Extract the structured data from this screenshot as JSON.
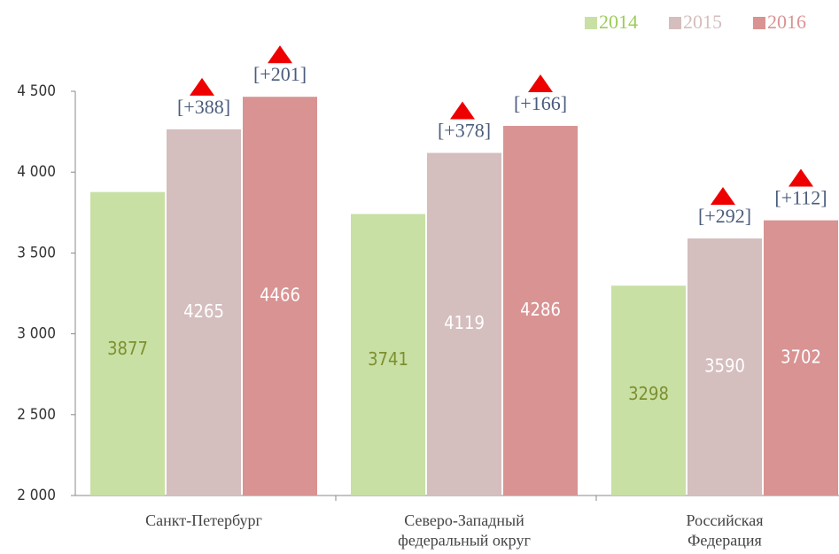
{
  "chart_data": {
    "type": "bar",
    "categories": [
      "Санкт-Петербург",
      "Северо-Западный\nфедеральный округ",
      "Российская\nФедерация"
    ],
    "series": [
      {
        "name": "2014",
        "color": "#c8e0a4",
        "label_color": "#7d8f2e",
        "values": [
          3877,
          3741,
          3298
        ]
      },
      {
        "name": "2015",
        "color": "#d5bebe",
        "label_color": "#ffffff",
        "values": [
          4265,
          4119,
          3590
        ],
        "annotations": [
          "[+388]",
          "[+378]",
          "[+292]"
        ]
      },
      {
        "name": "2016",
        "color": "#d99393",
        "label_color": "#ffffff",
        "values": [
          4466,
          4286,
          3702
        ],
        "annotations": [
          "[+201]",
          "[+166]",
          "[+112]"
        ]
      }
    ],
    "ylim": [
      2000,
      4500
    ],
    "yticks": [
      {
        "value": 2000,
        "label": "2 000"
      },
      {
        "value": 2500,
        "label": "2 500"
      },
      {
        "value": 3000,
        "label": "3 000"
      },
      {
        "value": 3500,
        "label": "3 500"
      },
      {
        "value": 4000,
        "label": "4 000"
      },
      {
        "value": 4500,
        "label": "4 500"
      }
    ],
    "legend": "top-right"
  }
}
